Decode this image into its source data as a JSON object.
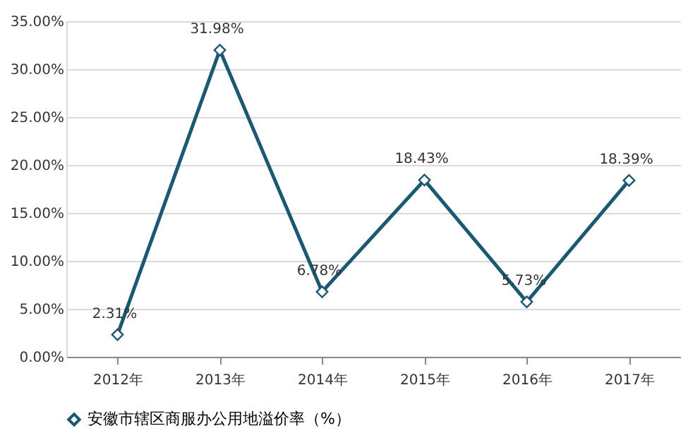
{
  "chart_data": {
    "type": "line",
    "categories": [
      "2012年",
      "2013年",
      "2014年",
      "2015年",
      "2016年",
      "2017年"
    ],
    "series": [
      {
        "name": "安徽市辖区商服办公用地溢价率（%）",
        "color": "#1b5872",
        "values": [
          2.31,
          31.98,
          6.78,
          18.43,
          5.73,
          18.39
        ],
        "value_labels": [
          "2.31%",
          "31.98%",
          "6.78%",
          "18.43%",
          "5.73%",
          "18.39%"
        ]
      }
    ],
    "ylim": [
      0,
      35
    ],
    "yticks": [
      {
        "value": 0,
        "label": "0.00%"
      },
      {
        "value": 5,
        "label": "5.00%"
      },
      {
        "value": 10,
        "label": "10.00%"
      },
      {
        "value": 15,
        "label": "15.00%"
      },
      {
        "value": 20,
        "label": "20.00%"
      },
      {
        "value": 25,
        "label": "25.00%"
      },
      {
        "value": 30,
        "label": "30.00%"
      },
      {
        "value": 35,
        "label": "35.00%"
      }
    ],
    "grid": "y",
    "legend": "bottom",
    "marker": "diamond",
    "line_style": "solid"
  }
}
